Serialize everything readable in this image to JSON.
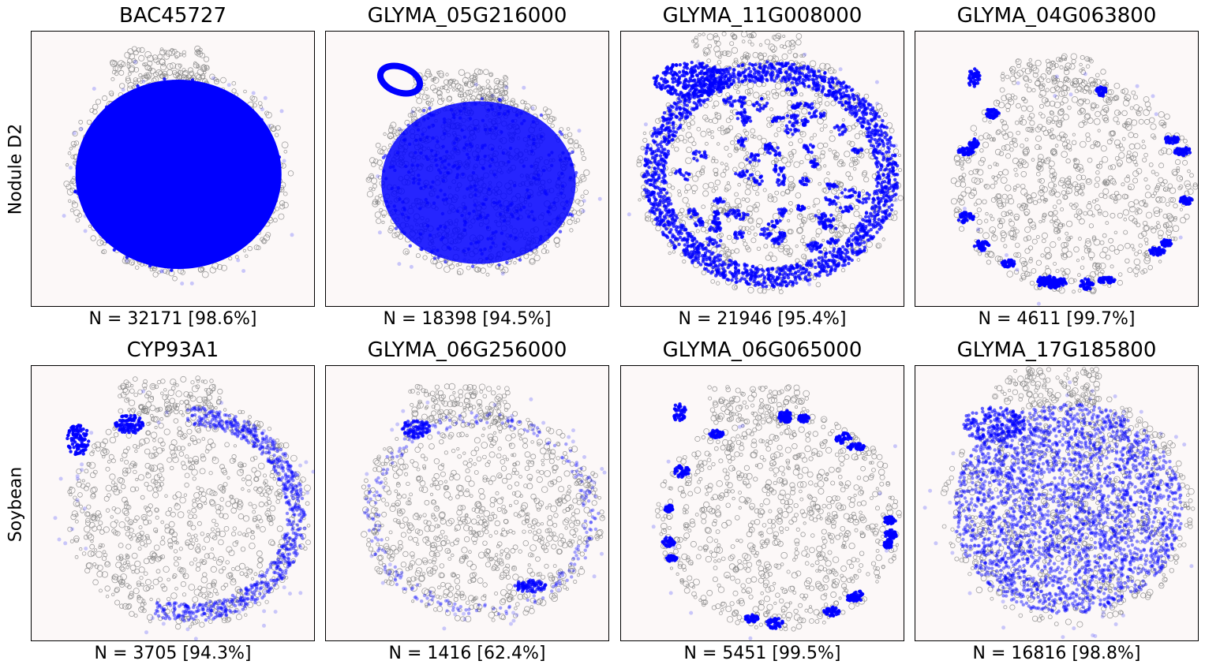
{
  "figure": {
    "row_labels": [
      "Nodule D2",
      "Soybean"
    ]
  },
  "chart_data": [
    {
      "type": "scatter",
      "title": "BAC45727",
      "caption": "N = 32171 [98.6%]",
      "pattern": "core",
      "params": {
        "cx": 0.52,
        "cy": 0.52,
        "rx": 0.37,
        "ry": 0.35
      }
    },
    {
      "type": "scatter",
      "title": "GLYMA_05G216000",
      "caption": "N = 18398 [94.5%]",
      "pattern": "core-loop",
      "params": {
        "cx": 0.54,
        "cy": 0.55,
        "rx": 0.36,
        "ry": 0.31
      }
    },
    {
      "type": "scatter",
      "title": "GLYMA_11G008000",
      "caption": "N = 21946 [95.4%]",
      "pattern": "ring-speckle",
      "params": {
        "cx": 0.53,
        "cy": 0.52,
        "rx": 0.44,
        "ry": 0.4
      }
    },
    {
      "type": "scatter",
      "title": "GLYMA_04G063800",
      "caption": "N = 4611 [99.7%]",
      "pattern": "edge-clusters",
      "params": {
        "cx": 0.56,
        "cy": 0.56,
        "rx": 0.4,
        "ry": 0.36
      }
    },
    {
      "type": "scatter",
      "title": "CYP93A1",
      "caption": "N = 3705 [94.3%]",
      "pattern": "arc",
      "params": {
        "cx": 0.56,
        "cy": 0.54,
        "rx": 0.4,
        "ry": 0.38
      }
    },
    {
      "type": "scatter",
      "title": "GLYMA_06G256000",
      "caption": "N = 1416 [62.4%]",
      "pattern": "sparse-edge",
      "params": {
        "cx": 0.55,
        "cy": 0.54,
        "rx": 0.4,
        "ry": 0.36
      }
    },
    {
      "type": "scatter",
      "title": "GLYMA_06G065000",
      "caption": "N = 5451 [99.5%]",
      "pattern": "edge-clusters",
      "params": {
        "cx": 0.56,
        "cy": 0.56,
        "rx": 0.4,
        "ry": 0.37
      }
    },
    {
      "type": "scatter",
      "title": "GLYMA_17G185800",
      "caption": "N = 16816 [98.8%]",
      "pattern": "broad",
      "params": {
        "cx": 0.54,
        "cy": 0.52,
        "rx": 0.41,
        "ry": 0.39
      }
    }
  ],
  "colors": {
    "points": "#0000ff",
    "cells": "#808080",
    "panel_bg": "#fcf8f8",
    "frame": "#000000"
  }
}
